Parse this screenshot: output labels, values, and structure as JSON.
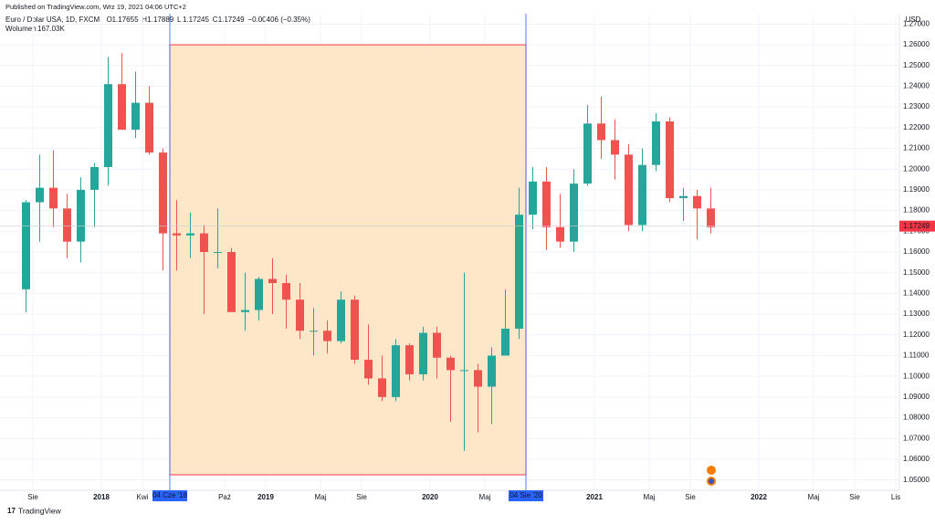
{
  "header": {
    "published": "Published on TradingView.com, Wrz 19, 2021 04:06 UTC+2"
  },
  "legend": {
    "symbol": "Euro / Dolar USA, 1D, FXCM",
    "ohlc": [
      {
        "key": "O",
        "value": "1.17655"
      },
      {
        "key": "H",
        "value": "1.17889"
      },
      {
        "key": "L",
        "value": "1.17245"
      },
      {
        "key": "C",
        "value": "1.17249"
      }
    ],
    "change": "−0.00406 (−0.35%)",
    "volume_label": "Wolumen",
    "volume_value": "167.03K"
  },
  "footer": {
    "brand": "TradingView"
  },
  "chart_data": {
    "type": "candlestick",
    "currency": "USD",
    "up_color": "#26a69a",
    "down_color": "#ef5350",
    "x": [
      "2017-07",
      "2017-08",
      "2017-09",
      "2017-10",
      "2017-11",
      "2017-12",
      "2018-01",
      "2018-02",
      "2018-03",
      "2018-04",
      "2018-05",
      "2018-06",
      "2018-07",
      "2018-08",
      "2018-09",
      "2018-10",
      "2018-11",
      "2018-12",
      "2019-01",
      "2019-02",
      "2019-03",
      "2019-04",
      "2019-05",
      "2019-06",
      "2019-07",
      "2019-08",
      "2019-09",
      "2019-10",
      "2019-11",
      "2019-12",
      "2020-01",
      "2020-02",
      "2020-03",
      "2020-04",
      "2020-05",
      "2020-06",
      "2020-07",
      "2020-08",
      "2020-09",
      "2020-10",
      "2020-11",
      "2020-12",
      "2021-01",
      "2021-02",
      "2021-03",
      "2021-04",
      "2021-05",
      "2021-06",
      "2021-07",
      "2021-08",
      "2021-09"
    ],
    "open": [
      1.142,
      1.184,
      1.191,
      1.181,
      1.165,
      1.19,
      1.201,
      1.241,
      1.219,
      1.232,
      1.208,
      1.169,
      1.168,
      1.169,
      1.16,
      1.16,
      1.131,
      1.132,
      1.147,
      1.145,
      1.137,
      1.122,
      1.122,
      1.117,
      1.137,
      1.108,
      1.099,
      1.09,
      1.115,
      1.101,
      1.121,
      1.109,
      1.103,
      1.103,
      1.095,
      1.11,
      1.123,
      1.178,
      1.194,
      1.172,
      1.165,
      1.193,
      1.222,
      1.214,
      1.207,
      1.173,
      1.202,
      1.223,
      1.186,
      1.187,
      1.181
    ],
    "high": [
      1.185,
      1.207,
      1.209,
      1.188,
      1.196,
      1.203,
      1.254,
      1.256,
      1.247,
      1.24,
      1.21,
      1.185,
      1.179,
      1.173,
      1.181,
      1.162,
      1.15,
      1.148,
      1.157,
      1.149,
      1.145,
      1.133,
      1.127,
      1.141,
      1.139,
      1.125,
      1.11,
      1.118,
      1.116,
      1.124,
      1.124,
      1.11,
      1.15,
      1.106,
      1.114,
      1.142,
      1.191,
      1.201,
      1.201,
      1.188,
      1.2,
      1.231,
      1.235,
      1.224,
      1.212,
      1.21,
      1.227,
      1.225,
      1.191,
      1.19,
      1.191
    ],
    "low": [
      1.131,
      1.165,
      1.172,
      1.157,
      1.155,
      1.172,
      1.192,
      1.219,
      1.215,
      1.207,
      1.151,
      1.151,
      1.157,
      1.13,
      1.152,
      1.132,
      1.122,
      1.127,
      1.13,
      1.123,
      1.118,
      1.11,
      1.111,
      1.116,
      1.106,
      1.096,
      1.088,
      1.088,
      1.098,
      1.098,
      1.099,
      1.078,
      1.064,
      1.073,
      1.077,
      1.11,
      1.118,
      1.171,
      1.161,
      1.162,
      1.16,
      1.192,
      1.205,
      1.195,
      1.17,
      1.17,
      1.199,
      1.184,
      1.175,
      1.166,
      1.169
    ],
    "close": [
      1.184,
      1.191,
      1.181,
      1.165,
      1.19,
      1.201,
      1.241,
      1.219,
      1.232,
      1.208,
      1.169,
      1.168,
      1.169,
      1.16,
      1.16,
      1.131,
      1.132,
      1.147,
      1.145,
      1.137,
      1.122,
      1.122,
      1.117,
      1.137,
      1.108,
      1.099,
      1.09,
      1.115,
      1.101,
      1.121,
      1.109,
      1.103,
      1.103,
      1.095,
      1.11,
      1.123,
      1.178,
      1.194,
      1.172,
      1.165,
      1.193,
      1.222,
      1.214,
      1.207,
      1.173,
      1.202,
      1.223,
      1.186,
      1.187,
      1.181,
      1.172
    ],
    "xlim": [
      "2017-06",
      "2022-11"
    ],
    "xticks": [
      {
        "value": "2017-08",
        "label": "Sie"
      },
      {
        "value": "2018-01",
        "label": "2018"
      },
      {
        "value": "2018-04",
        "label": "Kwi"
      },
      {
        "value": "2018-10",
        "label": "Paź"
      },
      {
        "value": "2019-01",
        "label": "2019"
      },
      {
        "value": "2019-05",
        "label": "Maj"
      },
      {
        "value": "2019-08",
        "label": "Sie"
      },
      {
        "value": "2020-01",
        "label": "2020"
      },
      {
        "value": "2020-05",
        "label": "Maj"
      },
      {
        "value": "2021-01",
        "label": "2021"
      },
      {
        "value": "2021-05",
        "label": "Maj"
      },
      {
        "value": "2021-08",
        "label": "Sie"
      },
      {
        "value": "2022-01",
        "label": "2022"
      },
      {
        "value": "2022-05",
        "label": "Maj"
      },
      {
        "value": "2022-08",
        "label": "Sie"
      },
      {
        "value": "2022-11",
        "label": "Lis"
      }
    ],
    "ylim": [
      1.045,
      1.275
    ],
    "yticks": [
      {
        "value": 1.05,
        "label": "1.05000"
      },
      {
        "value": 1.06,
        "label": "1.06000"
      },
      {
        "value": 1.07,
        "label": "1.07000"
      },
      {
        "value": 1.08,
        "label": "1.08000"
      },
      {
        "value": 1.09,
        "label": "1.09000"
      },
      {
        "value": 1.1,
        "label": "1.10000"
      },
      {
        "value": 1.11,
        "label": "1.11000"
      },
      {
        "value": 1.12,
        "label": "1.12000"
      },
      {
        "value": 1.13,
        "label": "1.13000"
      },
      {
        "value": 1.14,
        "label": "1.14000"
      },
      {
        "value": 1.15,
        "label": "1.15000"
      },
      {
        "value": 1.16,
        "label": "1.16000"
      },
      {
        "value": 1.17,
        "label": "1.17000"
      },
      {
        "value": 1.18,
        "label": "1.18000"
      },
      {
        "value": 1.19,
        "label": "1.19000"
      },
      {
        "value": 1.2,
        "label": "1.20000"
      },
      {
        "value": 1.21,
        "label": "1.21000"
      },
      {
        "value": 1.22,
        "label": "1.22000"
      },
      {
        "value": 1.23,
        "label": "1.23000"
      },
      {
        "value": 1.24,
        "label": "1.24000"
      },
      {
        "value": 1.25,
        "label": "1.25000"
      },
      {
        "value": 1.26,
        "label": "1.26000"
      },
      {
        "value": 1.27,
        "label": "1.27000"
      }
    ],
    "grid": true,
    "last_price": {
      "value": 1.17249,
      "label": "1.17249",
      "color": "#f23645"
    },
    "range": {
      "start": {
        "value": "2018-06",
        "label": "04 Cze '18"
      },
      "end": {
        "value": "2020-08",
        "label": "04 Sie '20"
      },
      "top": 1.26,
      "bottom": 1.0525,
      "fill": "#fde7c8",
      "border": "#f23645",
      "marker_color": "#2962ff"
    }
  }
}
